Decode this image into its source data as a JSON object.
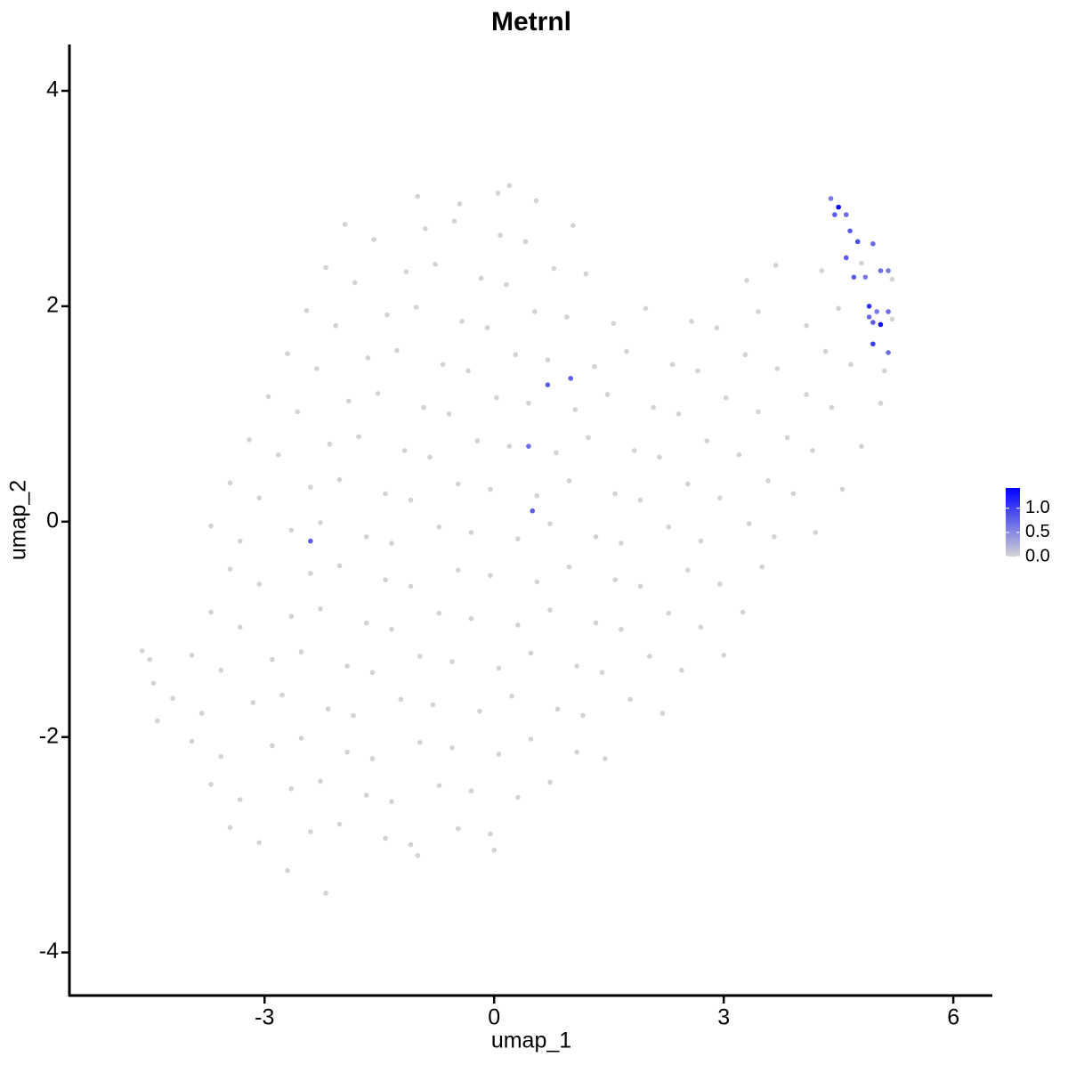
{
  "chart_data": {
    "type": "scatter",
    "title": "Metrnl",
    "x_label": "umap_1",
    "y_label": "umap_2",
    "xlim": [
      -5.55,
      6.51
    ],
    "ylim": [
      -4.4,
      4.43
    ],
    "xticks": [
      -3,
      0,
      3,
      6
    ],
    "yticks": [
      -4,
      -2,
      0,
      2,
      4
    ],
    "color_low": "#d3d3d3",
    "color_high": "#0000ff",
    "colorlim": [
      0,
      1.42
    ],
    "colorbar_ticks": [
      {
        "value": 0,
        "label": "0.0"
      },
      {
        "value": 0.5,
        "label": "0.5"
      },
      {
        "value": 1,
        "label": "1.0"
      }
    ],
    "points": [
      {
        "x": -1.95,
        "y": 2.76,
        "value": 0
      },
      {
        "x": -1.57,
        "y": 2.62,
        "value": 0
      },
      {
        "x": -0.9,
        "y": 2.72,
        "value": 0
      },
      {
        "x": -0.52,
        "y": 2.79,
        "value": 0
      },
      {
        "x": 0.08,
        "y": 2.66,
        "value": 0
      },
      {
        "x": 0.41,
        "y": 2.6,
        "value": 0
      },
      {
        "x": 1.03,
        "y": 2.75,
        "value": 0
      },
      {
        "x": -1.0,
        "y": 3.02,
        "value": 0
      },
      {
        "x": -0.45,
        "y": 2.95,
        "value": 0
      },
      {
        "x": 0.05,
        "y": 3.05,
        "value": 0
      },
      {
        "x": 0.55,
        "y": 2.98,
        "value": 0
      },
      {
        "x": 0.2,
        "y": 3.12,
        "value": 0
      },
      {
        "x": -2.2,
        "y": 2.36,
        "value": 0
      },
      {
        "x": -1.82,
        "y": 2.22,
        "value": 0
      },
      {
        "x": -1.15,
        "y": 2.32,
        "value": 0
      },
      {
        "x": -0.77,
        "y": 2.39,
        "value": 0
      },
      {
        "x": -0.17,
        "y": 2.26,
        "value": 0
      },
      {
        "x": 0.16,
        "y": 2.2,
        "value": 0
      },
      {
        "x": 0.78,
        "y": 2.35,
        "value": 0
      },
      {
        "x": 1.2,
        "y": 2.3,
        "value": 0
      },
      {
        "x": 3.3,
        "y": 2.24,
        "value": 0
      },
      {
        "x": 3.68,
        "y": 2.38,
        "value": 0
      },
      {
        "x": 4.28,
        "y": 2.33,
        "value": 0
      },
      {
        "x": 4.8,
        "y": 2.4,
        "value": 0
      },
      {
        "x": 5.2,
        "y": 2.25,
        "value": 0
      },
      {
        "x": -2.45,
        "y": 1.96,
        "value": 0
      },
      {
        "x": -2.07,
        "y": 1.82,
        "value": 0
      },
      {
        "x": -1.4,
        "y": 1.92,
        "value": 0
      },
      {
        "x": -1.02,
        "y": 1.99,
        "value": 0
      },
      {
        "x": -0.42,
        "y": 1.86,
        "value": 0
      },
      {
        "x": -0.09,
        "y": 1.8,
        "value": 0
      },
      {
        "x": 0.53,
        "y": 1.95,
        "value": 0
      },
      {
        "x": 0.95,
        "y": 1.9,
        "value": 0
      },
      {
        "x": 1.56,
        "y": 1.84,
        "value": 0
      },
      {
        "x": 1.98,
        "y": 1.98,
        "value": 0
      },
      {
        "x": 2.58,
        "y": 1.86,
        "value": 0
      },
      {
        "x": 2.91,
        "y": 1.8,
        "value": 0
      },
      {
        "x": 3.45,
        "y": 1.95,
        "value": 0
      },
      {
        "x": 4.08,
        "y": 1.82,
        "value": 0
      },
      {
        "x": 4.5,
        "y": 1.98,
        "value": 0
      },
      {
        "x": 5.2,
        "y": 1.88,
        "value": 0
      },
      {
        "x": -2.7,
        "y": 1.56,
        "value": 0
      },
      {
        "x": -2.32,
        "y": 1.42,
        "value": 0
      },
      {
        "x": -1.65,
        "y": 1.52,
        "value": 0
      },
      {
        "x": -1.27,
        "y": 1.59,
        "value": 0
      },
      {
        "x": -0.67,
        "y": 1.46,
        "value": 0
      },
      {
        "x": -0.34,
        "y": 1.4,
        "value": 0
      },
      {
        "x": 0.28,
        "y": 1.55,
        "value": 0
      },
      {
        "x": 0.7,
        "y": 1.5,
        "value": 0
      },
      {
        "x": 1.31,
        "y": 1.44,
        "value": 0
      },
      {
        "x": 1.73,
        "y": 1.58,
        "value": 0
      },
      {
        "x": 2.33,
        "y": 1.46,
        "value": 0
      },
      {
        "x": 2.66,
        "y": 1.4,
        "value": 0
      },
      {
        "x": 3.28,
        "y": 1.55,
        "value": 0
      },
      {
        "x": 3.7,
        "y": 1.42,
        "value": 0
      },
      {
        "x": 4.33,
        "y": 1.58,
        "value": 0
      },
      {
        "x": 4.66,
        "y": 1.46,
        "value": 0
      },
      {
        "x": 5.1,
        "y": 1.4,
        "value": 0
      },
      {
        "x": -2.95,
        "y": 1.16,
        "value": 0
      },
      {
        "x": -2.57,
        "y": 1.02,
        "value": 0
      },
      {
        "x": -1.9,
        "y": 1.12,
        "value": 0
      },
      {
        "x": -1.52,
        "y": 1.19,
        "value": 0
      },
      {
        "x": -0.92,
        "y": 1.06,
        "value": 0
      },
      {
        "x": -0.59,
        "y": 1.0,
        "value": 0
      },
      {
        "x": 0.03,
        "y": 1.15,
        "value": 0
      },
      {
        "x": 0.45,
        "y": 1.1,
        "value": 0
      },
      {
        "x": 1.06,
        "y": 1.04,
        "value": 0
      },
      {
        "x": 1.48,
        "y": 1.18,
        "value": 0
      },
      {
        "x": 2.08,
        "y": 1.06,
        "value": 0
      },
      {
        "x": 2.41,
        "y": 1.0,
        "value": 0
      },
      {
        "x": 3.03,
        "y": 1.15,
        "value": 0
      },
      {
        "x": 3.45,
        "y": 1.02,
        "value": 0
      },
      {
        "x": 4.08,
        "y": 1.18,
        "value": 0
      },
      {
        "x": 4.41,
        "y": 1.06,
        "value": 0
      },
      {
        "x": 5.05,
        "y": 1.1,
        "value": 0
      },
      {
        "x": -3.2,
        "y": 0.76,
        "value": 0
      },
      {
        "x": -2.82,
        "y": 0.62,
        "value": 0
      },
      {
        "x": -2.15,
        "y": 0.72,
        "value": 0
      },
      {
        "x": -1.77,
        "y": 0.79,
        "value": 0
      },
      {
        "x": -1.17,
        "y": 0.66,
        "value": 0
      },
      {
        "x": -0.84,
        "y": 0.6,
        "value": 0
      },
      {
        "x": -0.22,
        "y": 0.75,
        "value": 0
      },
      {
        "x": 0.2,
        "y": 0.7,
        "value": 0
      },
      {
        "x": 0.81,
        "y": 0.64,
        "value": 0
      },
      {
        "x": 1.23,
        "y": 0.78,
        "value": 0
      },
      {
        "x": 1.83,
        "y": 0.66,
        "value": 0
      },
      {
        "x": 2.16,
        "y": 0.6,
        "value": 0
      },
      {
        "x": 2.78,
        "y": 0.75,
        "value": 0
      },
      {
        "x": 3.2,
        "y": 0.62,
        "value": 0
      },
      {
        "x": 3.83,
        "y": 0.78,
        "value": 0
      },
      {
        "x": 4.16,
        "y": 0.66,
        "value": 0
      },
      {
        "x": 4.8,
        "y": 0.7,
        "value": 0
      },
      {
        "x": -3.45,
        "y": 0.36,
        "value": 0
      },
      {
        "x": -3.07,
        "y": 0.22,
        "value": 0
      },
      {
        "x": -2.4,
        "y": 0.32,
        "value": 0
      },
      {
        "x": -2.02,
        "y": 0.39,
        "value": 0
      },
      {
        "x": -1.42,
        "y": 0.26,
        "value": 0
      },
      {
        "x": -1.09,
        "y": 0.2,
        "value": 0
      },
      {
        "x": -0.47,
        "y": 0.35,
        "value": 0
      },
      {
        "x": -0.05,
        "y": 0.3,
        "value": 0
      },
      {
        "x": 0.56,
        "y": 0.24,
        "value": 0
      },
      {
        "x": 0.98,
        "y": 0.38,
        "value": 0
      },
      {
        "x": 1.58,
        "y": 0.26,
        "value": 0
      },
      {
        "x": 1.91,
        "y": 0.2,
        "value": 0
      },
      {
        "x": 2.53,
        "y": 0.35,
        "value": 0
      },
      {
        "x": 2.95,
        "y": 0.22,
        "value": 0
      },
      {
        "x": 3.58,
        "y": 0.38,
        "value": 0
      },
      {
        "x": 3.91,
        "y": 0.26,
        "value": 0
      },
      {
        "x": 4.55,
        "y": 0.3,
        "value": 0
      },
      {
        "x": -3.7,
        "y": -0.04,
        "value": 0
      },
      {
        "x": -3.32,
        "y": -0.18,
        "value": 0
      },
      {
        "x": -2.65,
        "y": -0.08,
        "value": 0
      },
      {
        "x": -2.27,
        "y": -0.01,
        "value": 0
      },
      {
        "x": -1.67,
        "y": -0.14,
        "value": 0
      },
      {
        "x": -1.34,
        "y": -0.2,
        "value": 0
      },
      {
        "x": -0.72,
        "y": -0.05,
        "value": 0
      },
      {
        "x": -0.3,
        "y": -0.1,
        "value": 0
      },
      {
        "x": 0.31,
        "y": -0.16,
        "value": 0
      },
      {
        "x": 0.73,
        "y": -0.02,
        "value": 0
      },
      {
        "x": 1.33,
        "y": -0.14,
        "value": 0
      },
      {
        "x": 1.66,
        "y": -0.2,
        "value": 0
      },
      {
        "x": 2.28,
        "y": -0.05,
        "value": 0
      },
      {
        "x": 2.7,
        "y": -0.18,
        "value": 0
      },
      {
        "x": 3.33,
        "y": -0.02,
        "value": 0
      },
      {
        "x": 3.66,
        "y": -0.14,
        "value": 0
      },
      {
        "x": 4.2,
        "y": -0.1,
        "value": 0
      },
      {
        "x": -3.45,
        "y": -0.44,
        "value": 0
      },
      {
        "x": -3.07,
        "y": -0.58,
        "value": 0
      },
      {
        "x": -2.4,
        "y": -0.48,
        "value": 0
      },
      {
        "x": -2.02,
        "y": -0.41,
        "value": 0
      },
      {
        "x": -1.42,
        "y": -0.54,
        "value": 0
      },
      {
        "x": -1.09,
        "y": -0.6,
        "value": 0
      },
      {
        "x": -0.47,
        "y": -0.45,
        "value": 0
      },
      {
        "x": -0.05,
        "y": -0.5,
        "value": 0
      },
      {
        "x": 0.56,
        "y": -0.56,
        "value": 0
      },
      {
        "x": 0.98,
        "y": -0.42,
        "value": 0
      },
      {
        "x": 1.58,
        "y": -0.54,
        "value": 0
      },
      {
        "x": 1.91,
        "y": -0.6,
        "value": 0
      },
      {
        "x": 2.53,
        "y": -0.45,
        "value": 0
      },
      {
        "x": 2.95,
        "y": -0.58,
        "value": 0
      },
      {
        "x": 3.5,
        "y": -0.42,
        "value": 0
      },
      {
        "x": -3.7,
        "y": -0.84,
        "value": 0
      },
      {
        "x": -3.32,
        "y": -0.98,
        "value": 0
      },
      {
        "x": -2.65,
        "y": -0.88,
        "value": 0
      },
      {
        "x": -2.27,
        "y": -0.81,
        "value": 0
      },
      {
        "x": -1.67,
        "y": -0.94,
        "value": 0
      },
      {
        "x": -1.34,
        "y": -1.0,
        "value": 0
      },
      {
        "x": -0.72,
        "y": -0.85,
        "value": 0
      },
      {
        "x": -0.3,
        "y": -0.9,
        "value": 0
      },
      {
        "x": 0.31,
        "y": -0.96,
        "value": 0
      },
      {
        "x": 0.73,
        "y": -0.82,
        "value": 0
      },
      {
        "x": 1.33,
        "y": -0.94,
        "value": 0
      },
      {
        "x": 1.66,
        "y": -1.0,
        "value": 0
      },
      {
        "x": 2.28,
        "y": -0.85,
        "value": 0
      },
      {
        "x": 2.7,
        "y": -0.98,
        "value": 0
      },
      {
        "x": 3.25,
        "y": -0.84,
        "value": 0
      },
      {
        "x": -3.95,
        "y": -1.24,
        "value": 0
      },
      {
        "x": -3.57,
        "y": -1.38,
        "value": 0
      },
      {
        "x": -2.9,
        "y": -1.28,
        "value": 0
      },
      {
        "x": -2.52,
        "y": -1.21,
        "value": 0
      },
      {
        "x": -1.92,
        "y": -1.34,
        "value": 0
      },
      {
        "x": -1.59,
        "y": -1.4,
        "value": 0
      },
      {
        "x": -0.97,
        "y": -1.25,
        "value": 0
      },
      {
        "x": -0.55,
        "y": -1.3,
        "value": 0
      },
      {
        "x": 0.06,
        "y": -1.36,
        "value": 0
      },
      {
        "x": 0.48,
        "y": -1.22,
        "value": 0
      },
      {
        "x": 1.08,
        "y": -1.34,
        "value": 0
      },
      {
        "x": 1.41,
        "y": -1.4,
        "value": 0
      },
      {
        "x": 2.03,
        "y": -1.25,
        "value": 0
      },
      {
        "x": 2.45,
        "y": -1.38,
        "value": 0
      },
      {
        "x": 3.0,
        "y": -1.24,
        "value": 0
      },
      {
        "x": -4.2,
        "y": -1.64,
        "value": 0
      },
      {
        "x": -3.82,
        "y": -1.78,
        "value": 0
      },
      {
        "x": -3.15,
        "y": -1.68,
        "value": 0
      },
      {
        "x": -2.77,
        "y": -1.61,
        "value": 0
      },
      {
        "x": -2.17,
        "y": -1.74,
        "value": 0
      },
      {
        "x": -1.84,
        "y": -1.8,
        "value": 0
      },
      {
        "x": -1.22,
        "y": -1.65,
        "value": 0
      },
      {
        "x": -0.8,
        "y": -1.7,
        "value": 0
      },
      {
        "x": -0.19,
        "y": -1.76,
        "value": 0
      },
      {
        "x": 0.23,
        "y": -1.62,
        "value": 0
      },
      {
        "x": 0.83,
        "y": -1.74,
        "value": 0
      },
      {
        "x": 1.16,
        "y": -1.8,
        "value": 0
      },
      {
        "x": 1.78,
        "y": -1.65,
        "value": 0
      },
      {
        "x": 2.2,
        "y": -1.78,
        "value": 0
      },
      {
        "x": -3.95,
        "y": -2.04,
        "value": 0
      },
      {
        "x": -3.57,
        "y": -2.18,
        "value": 0
      },
      {
        "x": -2.9,
        "y": -2.08,
        "value": 0
      },
      {
        "x": -2.52,
        "y": -2.01,
        "value": 0
      },
      {
        "x": -1.92,
        "y": -2.14,
        "value": 0
      },
      {
        "x": -1.59,
        "y": -2.2,
        "value": 0
      },
      {
        "x": -0.97,
        "y": -2.05,
        "value": 0
      },
      {
        "x": -0.55,
        "y": -2.1,
        "value": 0
      },
      {
        "x": 0.06,
        "y": -2.16,
        "value": 0
      },
      {
        "x": 0.48,
        "y": -2.02,
        "value": 0
      },
      {
        "x": 1.08,
        "y": -2.14,
        "value": 0
      },
      {
        "x": 1.45,
        "y": -2.2,
        "value": 0
      },
      {
        "x": -3.7,
        "y": -2.44,
        "value": 0
      },
      {
        "x": -3.32,
        "y": -2.58,
        "value": 0
      },
      {
        "x": -2.65,
        "y": -2.48,
        "value": 0
      },
      {
        "x": -2.27,
        "y": -2.41,
        "value": 0
      },
      {
        "x": -1.67,
        "y": -2.54,
        "value": 0
      },
      {
        "x": -1.34,
        "y": -2.6,
        "value": 0
      },
      {
        "x": -0.72,
        "y": -2.45,
        "value": 0
      },
      {
        "x": -0.3,
        "y": -2.5,
        "value": 0
      },
      {
        "x": 0.31,
        "y": -2.56,
        "value": 0
      },
      {
        "x": 0.73,
        "y": -2.42,
        "value": 0
      },
      {
        "x": -3.45,
        "y": -2.84,
        "value": 0
      },
      {
        "x": -3.07,
        "y": -2.98,
        "value": 0
      },
      {
        "x": -2.4,
        "y": -2.88,
        "value": 0
      },
      {
        "x": -2.02,
        "y": -2.81,
        "value": 0
      },
      {
        "x": -1.42,
        "y": -2.94,
        "value": 0
      },
      {
        "x": -1.09,
        "y": -3.0,
        "value": 0
      },
      {
        "x": -0.47,
        "y": -2.85,
        "value": 0
      },
      {
        "x": -0.05,
        "y": -2.9,
        "value": 0
      },
      {
        "x": -2.7,
        "y": -3.24,
        "value": 0
      },
      {
        "x": -2.2,
        "y": -3.45,
        "value": 0
      },
      {
        "x": -4.6,
        "y": -1.2,
        "value": 0
      },
      {
        "x": -4.5,
        "y": -1.28,
        "value": 0
      },
      {
        "x": -4.4,
        "y": -1.85,
        "value": 0
      },
      {
        "x": -4.45,
        "y": -1.5,
        "value": 0
      },
      {
        "x": -1.0,
        "y": -3.1,
        "value": 0
      },
      {
        "x": 0.0,
        "y": -3.05,
        "value": 0
      },
      {
        "x": 4.4,
        "y": 3.0,
        "value": 0.6
      },
      {
        "x": 4.45,
        "y": 2.85,
        "value": 0.8
      },
      {
        "x": 4.6,
        "y": 2.85,
        "value": 0.7
      },
      {
        "x": 4.65,
        "y": 2.7,
        "value": 0.8
      },
      {
        "x": 4.75,
        "y": 2.6,
        "value": 0.9
      },
      {
        "x": 4.95,
        "y": 2.58,
        "value": 0.7
      },
      {
        "x": 4.6,
        "y": 2.45,
        "value": 0.8
      },
      {
        "x": 4.7,
        "y": 2.27,
        "value": 0.8
      },
      {
        "x": 4.85,
        "y": 2.27,
        "value": 0.6
      },
      {
        "x": 5.05,
        "y": 2.33,
        "value": 0.7
      },
      {
        "x": 5.15,
        "y": 2.33,
        "value": 0.6
      },
      {
        "x": 4.9,
        "y": 1.9,
        "value": 0.7
      },
      {
        "x": 4.95,
        "y": 1.85,
        "value": 0.8
      },
      {
        "x": 5.0,
        "y": 1.95,
        "value": 0.6
      },
      {
        "x": 5.15,
        "y": 1.95,
        "value": 0.7
      },
      {
        "x": 5.15,
        "y": 1.57,
        "value": 0.7
      },
      {
        "x": 0.7,
        "y": 1.27,
        "value": 0.8
      },
      {
        "x": 1.0,
        "y": 1.33,
        "value": 0.8
      },
      {
        "x": 0.45,
        "y": 0.7,
        "value": 0.7
      },
      {
        "x": 0.5,
        "y": 0.1,
        "value": 0.8
      },
      {
        "x": -2.4,
        "y": -0.18,
        "value": 0.8
      },
      {
        "x": 4.9,
        "y": 2.0,
        "value": 1.1
      },
      {
        "x": 4.95,
        "y": 1.65,
        "value": 1.0
      },
      {
        "x": 5.05,
        "y": 1.83,
        "value": 1.3
      },
      {
        "x": 4.5,
        "y": 2.92,
        "value": 1.4
      }
    ]
  }
}
